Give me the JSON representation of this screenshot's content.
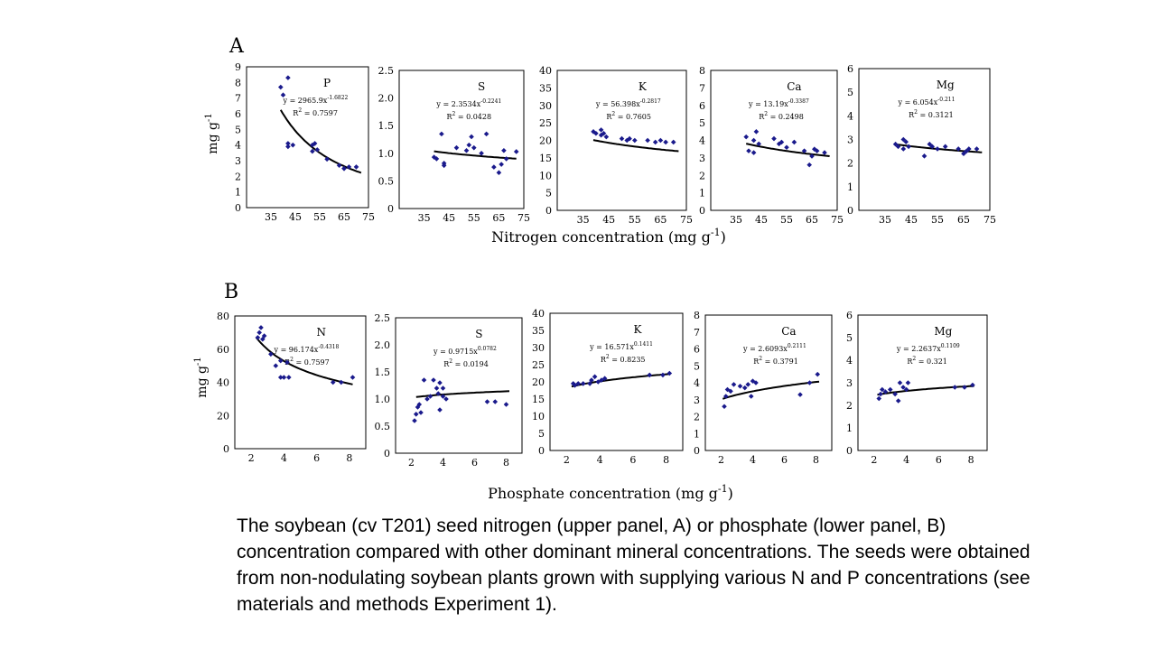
{
  "caption": "The soybean (cv T201) seed nitrogen (upper panel, A) or phosphate (lower panel, B) concentration compared with other dominant mineral concentrations. The seeds were obtained from non-nodulating soybean plants grown with supplying various N and P concentrations (see materials and methods Experiment 1).",
  "colors": {
    "points": "#1a1a8c",
    "curve": "#000000",
    "frame": "#000000"
  },
  "chart_data": [
    {
      "panel": "A",
      "type": "scatter",
      "xlabel": "Nitrogen concentration (mg g",
      "xlabel_sup": "-1",
      "xlabel_end": ")",
      "ylabel": "mg g",
      "ylabel_sup": "-1",
      "xlim": [
        25,
        75
      ],
      "xticks": [
        35,
        45,
        55,
        65,
        75
      ],
      "plots": [
        {
          "name": "P",
          "ylim": [
            0,
            9
          ],
          "yticks": [
            "0",
            "1",
            "2",
            "3",
            "4",
            "5",
            "6",
            "7",
            "8",
            "9"
          ],
          "eq": "y = 2965.9x",
          "eq_exp": "-1.6822",
          "r2": "R",
          "r2_val": " = 0.7597",
          "fit": {
            "kind": "power",
            "a": 2965.9,
            "b": -1.6822,
            "x_range": [
              39,
              72
            ]
          },
          "points": [
            [
              39,
              7.7
            ],
            [
              40,
              7.2
            ],
            [
              42,
              8.3
            ],
            [
              42,
              4.1
            ],
            [
              42,
              3.9
            ],
            [
              44,
              4.0
            ],
            [
              52,
              4.0
            ],
            [
              53,
              4.1
            ],
            [
              54,
              3.7
            ],
            [
              52,
              3.6
            ],
            [
              58,
              3.1
            ],
            [
              63,
              2.7
            ],
            [
              65,
              2.5
            ],
            [
              67,
              2.6
            ],
            [
              70,
              2.6
            ],
            [
              65,
              2.5
            ]
          ]
        },
        {
          "name": "S",
          "ylim": [
            0,
            2.5
          ],
          "yticks": [
            "0",
            "0.5",
            "1.0",
            "1.5",
            "2.0",
            "2.5"
          ],
          "eq": "y = 2.3534x",
          "eq_exp": "-0.2241",
          "r2": "R",
          "r2_val": " = 0.0428",
          "fit": {
            "kind": "power",
            "a": 2.3534,
            "b": -0.2241,
            "x_range": [
              39,
              72
            ]
          },
          "points": [
            [
              39,
              0.93
            ],
            [
              40,
              0.9
            ],
            [
              42,
              1.35
            ],
            [
              43,
              0.82
            ],
            [
              43,
              0.78
            ],
            [
              48,
              1.1
            ],
            [
              52,
              1.05
            ],
            [
              53,
              1.15
            ],
            [
              54,
              1.3
            ],
            [
              55,
              1.1
            ],
            [
              58,
              1.0
            ],
            [
              60,
              1.35
            ],
            [
              63,
              0.75
            ],
            [
              65,
              0.65
            ],
            [
              66,
              0.8
            ],
            [
              67,
              1.05
            ],
            [
              68,
              0.9
            ],
            [
              72,
              1.03
            ]
          ]
        },
        {
          "name": "K",
          "ylim": [
            0,
            40
          ],
          "yticks": [
            "0",
            "5",
            "10",
            "15",
            "20",
            "25",
            "30",
            "35",
            "40"
          ],
          "eq": "y = 56.398x",
          "eq_exp": "-0.2817",
          "r2": "R",
          "r2_val": " = 0.7605",
          "fit": {
            "kind": "power",
            "a": 56.398,
            "b": -0.2817,
            "x_range": [
              39,
              72
            ]
          },
          "points": [
            [
              39,
              22.5
            ],
            [
              40,
              22.0
            ],
            [
              42,
              23.0
            ],
            [
              42,
              21.5
            ],
            [
              43,
              22.0
            ],
            [
              44,
              21.0
            ],
            [
              50,
              20.5
            ],
            [
              52,
              20.0
            ],
            [
              53,
              20.5
            ],
            [
              55,
              20.0
            ],
            [
              60,
              20.0
            ],
            [
              63,
              19.5
            ],
            [
              65,
              20.0
            ],
            [
              67,
              19.5
            ],
            [
              70,
              19.5
            ]
          ]
        },
        {
          "name": "Ca",
          "ylim": [
            0,
            8
          ],
          "yticks": [
            "0",
            "1",
            "2",
            "3",
            "4",
            "5",
            "6",
            "7",
            "8"
          ],
          "eq": "y = 13.19x",
          "eq_exp": "-0.3387",
          "r2": "R",
          "r2_val": " = 0.2498",
          "fit": {
            "kind": "power",
            "a": 13.19,
            "b": -0.3387,
            "x_range": [
              39,
              72
            ]
          },
          "points": [
            [
              39,
              4.2
            ],
            [
              40,
              3.4
            ],
            [
              42,
              3.3
            ],
            [
              42,
              4.0
            ],
            [
              43,
              4.5
            ],
            [
              44,
              3.8
            ],
            [
              50,
              4.1
            ],
            [
              52,
              3.8
            ],
            [
              53,
              3.9
            ],
            [
              55,
              3.6
            ],
            [
              58,
              3.9
            ],
            [
              62,
              3.4
            ],
            [
              64,
              2.6
            ],
            [
              65,
              3.1
            ],
            [
              66,
              3.5
            ],
            [
              67,
              3.4
            ],
            [
              70,
              3.3
            ]
          ]
        },
        {
          "name": "Mg",
          "ylim": [
            0,
            6
          ],
          "yticks": [
            "0",
            "1",
            "2",
            "3",
            "4",
            "5",
            "6"
          ],
          "eq": "y = 6.054x",
          "eq_exp": "-0.211",
          "r2": "R",
          "r2_val": " = 0.3121",
          "fit": {
            "kind": "power",
            "a": 6.054,
            "b": -0.211,
            "x_range": [
              39,
              72
            ]
          },
          "points": [
            [
              39,
              2.8
            ],
            [
              40,
              2.7
            ],
            [
              42,
              3.0
            ],
            [
              42,
              2.6
            ],
            [
              43,
              2.9
            ],
            [
              44,
              2.7
            ],
            [
              50,
              2.3
            ],
            [
              52,
              2.8
            ],
            [
              53,
              2.7
            ],
            [
              55,
              2.6
            ],
            [
              58,
              2.7
            ],
            [
              63,
              2.6
            ],
            [
              65,
              2.4
            ],
            [
              66,
              2.5
            ],
            [
              67,
              2.6
            ],
            [
              70,
              2.6
            ]
          ]
        }
      ]
    },
    {
      "panel": "B",
      "type": "scatter",
      "xlabel": "Phosphate concentration (mg g",
      "xlabel_sup": "-1",
      "xlabel_end": ")",
      "ylabel": "mg g",
      "ylabel_sup": "-1",
      "xlim": [
        1,
        9
      ],
      "xticks": [
        2,
        4,
        6,
        8
      ],
      "plots": [
        {
          "name": "N",
          "ylim": [
            0,
            80
          ],
          "yticks": [
            "0",
            "20",
            "40",
            "60",
            "80"
          ],
          "eq": "y = 96.174x",
          "eq_exp": "-0.4318",
          "r2": "R",
          "r2_val": " = 0.7597",
          "fit": {
            "kind": "power",
            "a": 96.174,
            "b": -0.4318,
            "x_range": [
              2.3,
              8.2
            ]
          },
          "points": [
            [
              2.4,
              67
            ],
            [
              2.5,
              70
            ],
            [
              2.6,
              73
            ],
            [
              2.7,
              66
            ],
            [
              2.8,
              68
            ],
            [
              3.2,
              57
            ],
            [
              3.5,
              50
            ],
            [
              3.8,
              53
            ],
            [
              3.8,
              43
            ],
            [
              4.0,
              43
            ],
            [
              4.2,
              52
            ],
            [
              4.3,
              43
            ],
            [
              7.0,
              40
            ],
            [
              7.5,
              40
            ],
            [
              8.2,
              43
            ]
          ]
        },
        {
          "name": "S",
          "ylim": [
            0,
            2.5
          ],
          "yticks": [
            "0",
            "0.5",
            "1.0",
            "1.5",
            "2.0",
            "2.5"
          ],
          "eq": "y = 0.9715x",
          "eq_exp": "0.0782",
          "r2": "R",
          "r2_val": " = 0.0194",
          "fit": {
            "kind": "power",
            "a": 0.9715,
            "b": 0.0782,
            "x_range": [
              2.3,
              8.2
            ]
          },
          "points": [
            [
              2.2,
              0.6
            ],
            [
              2.3,
              0.72
            ],
            [
              2.4,
              0.85
            ],
            [
              2.5,
              0.9
            ],
            [
              2.6,
              0.75
            ],
            [
              2.8,
              1.35
            ],
            [
              3.0,
              1.0
            ],
            [
              3.2,
              1.05
            ],
            [
              3.4,
              1.35
            ],
            [
              3.6,
              1.2
            ],
            [
              3.7,
              1.1
            ],
            [
              3.8,
              1.3
            ],
            [
              3.8,
              0.8
            ],
            [
              4.0,
              1.05
            ],
            [
              4.0,
              1.2
            ],
            [
              4.2,
              1.0
            ],
            [
              6.8,
              0.95
            ],
            [
              7.3,
              0.95
            ],
            [
              8.0,
              0.9
            ]
          ]
        },
        {
          "name": "K",
          "ylim": [
            0,
            40
          ],
          "yticks": [
            "0",
            "5",
            "10",
            "15",
            "20",
            "25",
            "30",
            "35",
            "40"
          ],
          "eq": "y = 16.571x",
          "eq_exp": "0.1411",
          "r2": "R",
          "r2_val": " = 0.8235",
          "fit": {
            "kind": "power",
            "a": 16.571,
            "b": 0.1411,
            "x_range": [
              2.3,
              8.2
            ]
          },
          "points": [
            [
              2.4,
              19.5
            ],
            [
              2.5,
              19.0
            ],
            [
              2.7,
              19.5
            ],
            [
              3.0,
              19.5
            ],
            [
              3.4,
              19.5
            ],
            [
              3.5,
              20.5
            ],
            [
              3.7,
              21.5
            ],
            [
              3.9,
              20.0
            ],
            [
              4.1,
              20.5
            ],
            [
              4.3,
              21.0
            ],
            [
              7.0,
              22.0
            ],
            [
              7.8,
              22.0
            ],
            [
              8.2,
              22.5
            ]
          ]
        },
        {
          "name": "Ca",
          "ylim": [
            0,
            8
          ],
          "yticks": [
            "0",
            "1",
            "2",
            "3",
            "4",
            "5",
            "6",
            "7",
            "8"
          ],
          "eq": "y = 2.6093x",
          "eq_exp": "0.2111",
          "r2": "R",
          "r2_val": " = 0.3791",
          "fit": {
            "kind": "power",
            "a": 2.6093,
            "b": 0.2111,
            "x_range": [
              2.1,
              8.2
            ]
          },
          "points": [
            [
              2.2,
              2.6
            ],
            [
              2.3,
              3.2
            ],
            [
              2.4,
              3.6
            ],
            [
              2.6,
              3.5
            ],
            [
              2.8,
              3.9
            ],
            [
              3.2,
              3.8
            ],
            [
              3.5,
              3.7
            ],
            [
              3.7,
              3.9
            ],
            [
              3.9,
              3.2
            ],
            [
              4.0,
              4.1
            ],
            [
              4.2,
              4.0
            ],
            [
              7.0,
              3.3
            ],
            [
              7.6,
              4.0
            ],
            [
              8.1,
              4.5
            ]
          ]
        },
        {
          "name": "Mg",
          "ylim": [
            0,
            6
          ],
          "yticks": [
            "0",
            "1",
            "2",
            "3",
            "4",
            "5",
            "6"
          ],
          "eq": "y = 2.2637x",
          "eq_exp": "0.1109",
          "r2": "R",
          "r2_val": " = 0.321",
          "fit": {
            "kind": "power",
            "a": 2.2637,
            "b": 0.1109,
            "x_range": [
              2.2,
              8.2
            ]
          },
          "points": [
            [
              2.3,
              2.3
            ],
            [
              2.4,
              2.5
            ],
            [
              2.5,
              2.7
            ],
            [
              2.7,
              2.6
            ],
            [
              3.0,
              2.7
            ],
            [
              3.3,
              2.5
            ],
            [
              3.5,
              2.2
            ],
            [
              3.6,
              3.0
            ],
            [
              3.8,
              2.8
            ],
            [
              4.0,
              2.7
            ],
            [
              4.1,
              3.0
            ],
            [
              7.0,
              2.8
            ],
            [
              7.6,
              2.8
            ],
            [
              8.1,
              2.9
            ]
          ]
        }
      ]
    }
  ]
}
